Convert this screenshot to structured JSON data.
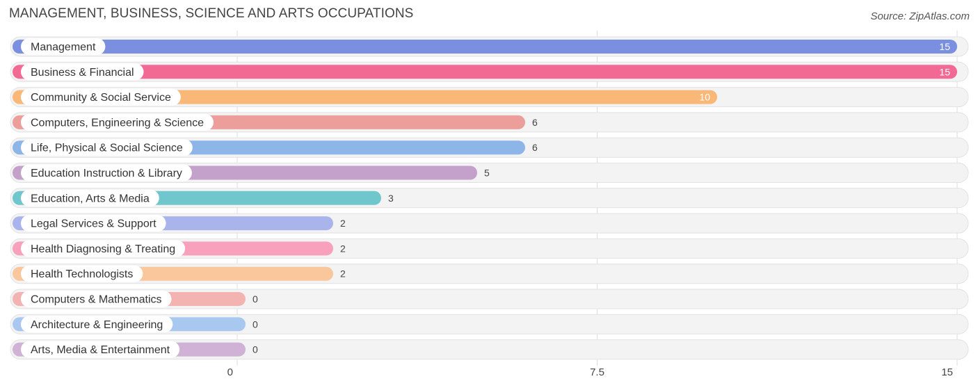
{
  "title": "MANAGEMENT, BUSINESS, SCIENCE AND ARTS OCCUPATIONS",
  "source": "Source: ZipAtlas.com",
  "chart_data": {
    "type": "bar",
    "orientation": "horizontal",
    "categories": [
      "Management",
      "Business & Financial",
      "Community & Social Service",
      "Computers, Engineering & Science",
      "Life, Physical & Social Science",
      "Education Instruction & Library",
      "Education, Arts & Media",
      "Legal Services & Support",
      "Health Diagnosing & Treating",
      "Health Technologists",
      "Computers & Mathematics",
      "Architecture & Engineering",
      "Arts, Media & Entertainment"
    ],
    "values": [
      15,
      15,
      10,
      6,
      6,
      5,
      3,
      2,
      2,
      2,
      0,
      0,
      0
    ],
    "value_labels": [
      "15",
      "15",
      "10",
      "6",
      "6",
      "5",
      "3",
      "2",
      "2",
      "2",
      "0",
      "0",
      "0"
    ],
    "colors": [
      "#7b8fe0",
      "#f26a94",
      "#f9b778",
      "#eb9e9a",
      "#8db5e8",
      "#c4a1cb",
      "#6fc6cc",
      "#aab4ec",
      "#f7a1bd",
      "#fac79c",
      "#f2b3b1",
      "#a9c8ef",
      "#cfb2d6"
    ],
    "xlim": [
      0,
      15
    ],
    "xticks": [
      "0",
      "7.5",
      "15"
    ],
    "xtick_values": [
      0,
      7.5,
      15
    ],
    "grid": true
  }
}
